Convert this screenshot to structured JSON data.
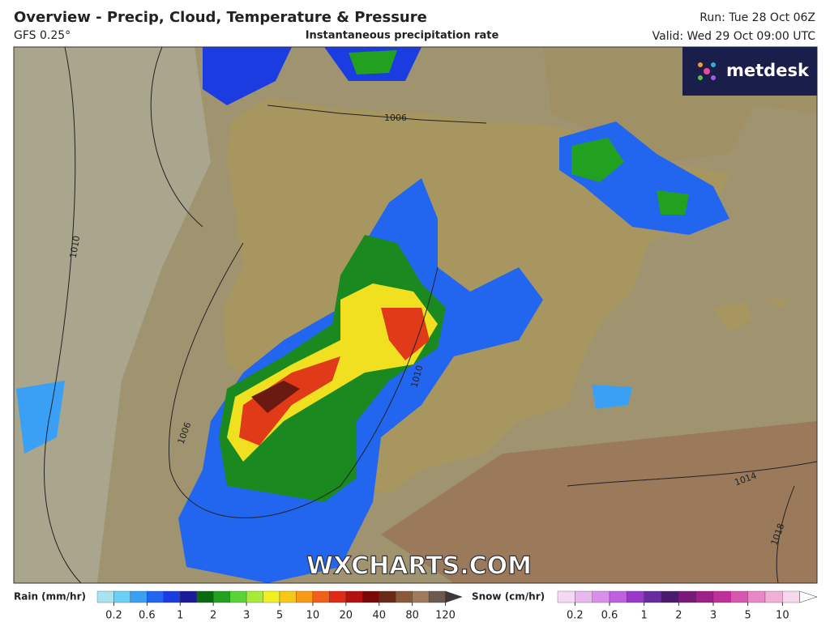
{
  "header": {
    "title": "Overview - Precip, Cloud, Temperature & Pressure",
    "model": "GFS 0.25°",
    "subtitle": "Instantaneous precipitation rate",
    "run": "Run: Tue 28 Oct 06Z",
    "valid": "Valid: Wed 29 Oct 09:00 UTC"
  },
  "logo": "metdesk",
  "watermark": "WXCHARTS.COM",
  "isobar_labels": [
    "1006",
    "1010",
    "1006",
    "1010",
    "1014",
    "1018"
  ],
  "legend": {
    "rain": {
      "label": "Rain (mm/hr)",
      "ticks": [
        0.2,
        0.6,
        1,
        2,
        3,
        5,
        10,
        20,
        40,
        80,
        120
      ],
      "colors": [
        "#a8e4f0",
        "#6ccff5",
        "#3aa0f5",
        "#2266f0",
        "#1a3ce0",
        "#1a1a9a",
        "#0a6a10",
        "#22a020",
        "#5ad23a",
        "#a6ea3a",
        "#f0f020",
        "#f8c818",
        "#f89a18",
        "#f06018",
        "#e02a18",
        "#b41010",
        "#7a0808",
        "#6a2a1a",
        "#8a5a3a",
        "#a07a5a",
        "#6a5a50",
        "#403838"
      ]
    },
    "snow": {
      "label": "Snow (cm/hr)",
      "ticks": [
        0.2,
        0.6,
        1,
        2,
        3,
        5,
        10
      ],
      "colors": [
        "#f4d8f4",
        "#e8b8f0",
        "#d890e8",
        "#c060e0",
        "#9a38c8",
        "#6a2aa0",
        "#4a1a70",
        "#7a1a7a",
        "#a0208a",
        "#c0309a",
        "#d858b0",
        "#e888c8",
        "#f0b0d8",
        "#f8d8ec",
        "#ffffff"
      ]
    }
  }
}
